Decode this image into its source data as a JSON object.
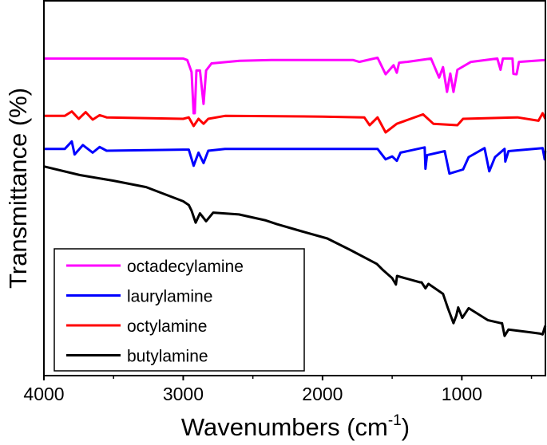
{
  "chart_data": {
    "type": "line",
    "title": "",
    "xlabel": "Wavenumbers (cm",
    "xlabel_sup": "-1",
    "xlabel_close": ")",
    "ylabel": "Transmittance (%)",
    "xlim": [
      4000,
      400
    ],
    "ylim": [
      0,
      100
    ],
    "x_reversed": true,
    "y_ticks_shown": false,
    "x_ticks": [
      4000,
      3000,
      2000,
      1000
    ],
    "x_tick_labels": [
      "4000",
      "3000",
      "2000",
      "1000"
    ],
    "x_minor_ticks": [
      3500,
      2500,
      1500,
      500
    ],
    "grid": false,
    "legend_position": "bottom-left",
    "series": [
      {
        "name": "octadecylamine",
        "color": "#ff00ff",
        "points": [
          [
            4000,
            84.6
          ],
          [
            3000,
            84.6
          ],
          [
            2971,
            84.2
          ],
          [
            2940,
            81
          ],
          [
            2925,
            70
          ],
          [
            2917,
            70
          ],
          [
            2905,
            81.4
          ],
          [
            2880,
            81.4
          ],
          [
            2854,
            72.5
          ],
          [
            2836,
            81.4
          ],
          [
            2797,
            83.3
          ],
          [
            2596,
            84.0
          ],
          [
            2367,
            84.2
          ],
          [
            1780,
            84.2
          ],
          [
            1736,
            83.7
          ],
          [
            1605,
            84.8
          ],
          [
            1547,
            80.4
          ],
          [
            1490,
            82.8
          ],
          [
            1467,
            80.8
          ],
          [
            1450,
            83.5
          ],
          [
            1393,
            83.7
          ],
          [
            1221,
            84.6
          ],
          [
            1163,
            79.5
          ],
          [
            1135,
            82.3
          ],
          [
            1106,
            75.7
          ],
          [
            1083,
            80.6
          ],
          [
            1060,
            75.7
          ],
          [
            1032,
            81.6
          ],
          [
            934,
            83.7
          ],
          [
            745,
            84.6
          ],
          [
            722,
            81.6
          ],
          [
            705,
            84.6
          ],
          [
            636,
            84.6
          ],
          [
            630,
            80.5
          ],
          [
            607,
            80.4
          ],
          [
            590,
            83.7
          ],
          [
            401,
            84.2
          ]
        ]
      },
      {
        "name": "laurylamine",
        "color": "#0000ff",
        "points": [
          [
            4000,
            60.5
          ],
          [
            3850,
            60.5
          ],
          [
            3800,
            62.5
          ],
          [
            3780,
            59
          ],
          [
            3720,
            61.5
          ],
          [
            3650,
            59.5
          ],
          [
            3600,
            61
          ],
          [
            3550,
            60
          ],
          [
            3000,
            60.3
          ],
          [
            2960,
            60.3
          ],
          [
            2925,
            56.0
          ],
          [
            2890,
            59.5
          ],
          [
            2854,
            56.7
          ],
          [
            2820,
            60
          ],
          [
            2700,
            60.5
          ],
          [
            2000,
            60.5
          ],
          [
            1650,
            60.5
          ],
          [
            1605,
            60.5
          ],
          [
            1547,
            57.7
          ],
          [
            1500,
            58.5
          ],
          [
            1467,
            57.3
          ],
          [
            1440,
            59.5
          ],
          [
            1267,
            60.9
          ],
          [
            1261,
            55.2
          ],
          [
            1250,
            58.8
          ],
          [
            1123,
            59.9
          ],
          [
            1089,
            53.9
          ],
          [
            991,
            55.0
          ],
          [
            951,
            58.3
          ],
          [
            837,
            60.7
          ],
          [
            803,
            54.5
          ],
          [
            762,
            58.3
          ],
          [
            693,
            60.5
          ],
          [
            688,
            57.1
          ],
          [
            665,
            59.9
          ],
          [
            420,
            60.7
          ],
          [
            405,
            57.7
          ],
          [
            401,
            60
          ]
        ]
      },
      {
        "name": "octylamine",
        "color": "#ff0000",
        "points": [
          [
            4000,
            69.3
          ],
          [
            3850,
            69.3
          ],
          [
            3800,
            70.5
          ],
          [
            3750,
            68.5
          ],
          [
            3700,
            70.3
          ],
          [
            3650,
            68.3
          ],
          [
            3600,
            69.5
          ],
          [
            3550,
            68.9
          ],
          [
            3000,
            68.5
          ],
          [
            2960,
            68.9
          ],
          [
            2925,
            66.6
          ],
          [
            2890,
            68.5
          ],
          [
            2854,
            67.2
          ],
          [
            2820,
            68.5
          ],
          [
            2700,
            69.3
          ],
          [
            2000,
            69.1
          ],
          [
            1700,
            68.9
          ],
          [
            1662,
            66.8
          ],
          [
            1605,
            68.9
          ],
          [
            1547,
            64.9
          ],
          [
            1467,
            67.2
          ],
          [
            1278,
            69.7
          ],
          [
            1204,
            67.2
          ],
          [
            1032,
            66.8
          ],
          [
            991,
            68.5
          ],
          [
            600,
            68.9
          ],
          [
            450,
            68.0
          ],
          [
            420,
            70.0
          ],
          [
            401,
            68.5
          ]
        ]
      },
      {
        "name": "butylamine",
        "color": "#000000",
        "points": [
          [
            4000,
            55.8
          ],
          [
            3742,
            53.5
          ],
          [
            3500,
            52
          ],
          [
            3266,
            50.3
          ],
          [
            3000,
            46.5
          ],
          [
            2960,
            45.5
          ],
          [
            2940,
            44
          ],
          [
            2911,
            40.8
          ],
          [
            2880,
            43.3
          ],
          [
            2836,
            41.2
          ],
          [
            2785,
            43.5
          ],
          [
            2600,
            43
          ],
          [
            2407,
            41.4
          ],
          [
            2327,
            40.4
          ],
          [
            2150,
            38.5
          ],
          [
            1966,
            36.6
          ],
          [
            1800,
            33.5
          ],
          [
            1610,
            29.8
          ],
          [
            1564,
            28.1
          ],
          [
            1500,
            26
          ],
          [
            1473,
            24.3
          ],
          [
            1465,
            26.6
          ],
          [
            1300,
            24.9
          ],
          [
            1289,
            24.9
          ],
          [
            1261,
            23.3
          ],
          [
            1240,
            24.5
          ],
          [
            1135,
            21.8
          ],
          [
            1100,
            18
          ],
          [
            1060,
            14
          ],
          [
            1040,
            16
          ],
          [
            1026,
            18.2
          ],
          [
            997,
            15.4
          ],
          [
            951,
            18
          ],
          [
            814,
            14.8
          ],
          [
            720,
            14
          ],
          [
            711,
            14
          ],
          [
            693,
            10.6
          ],
          [
            665,
            12.3
          ],
          [
            500,
            11.5
          ],
          [
            436,
            11.2
          ],
          [
            420,
            11
          ],
          [
            401,
            13.3
          ]
        ]
      }
    ]
  }
}
